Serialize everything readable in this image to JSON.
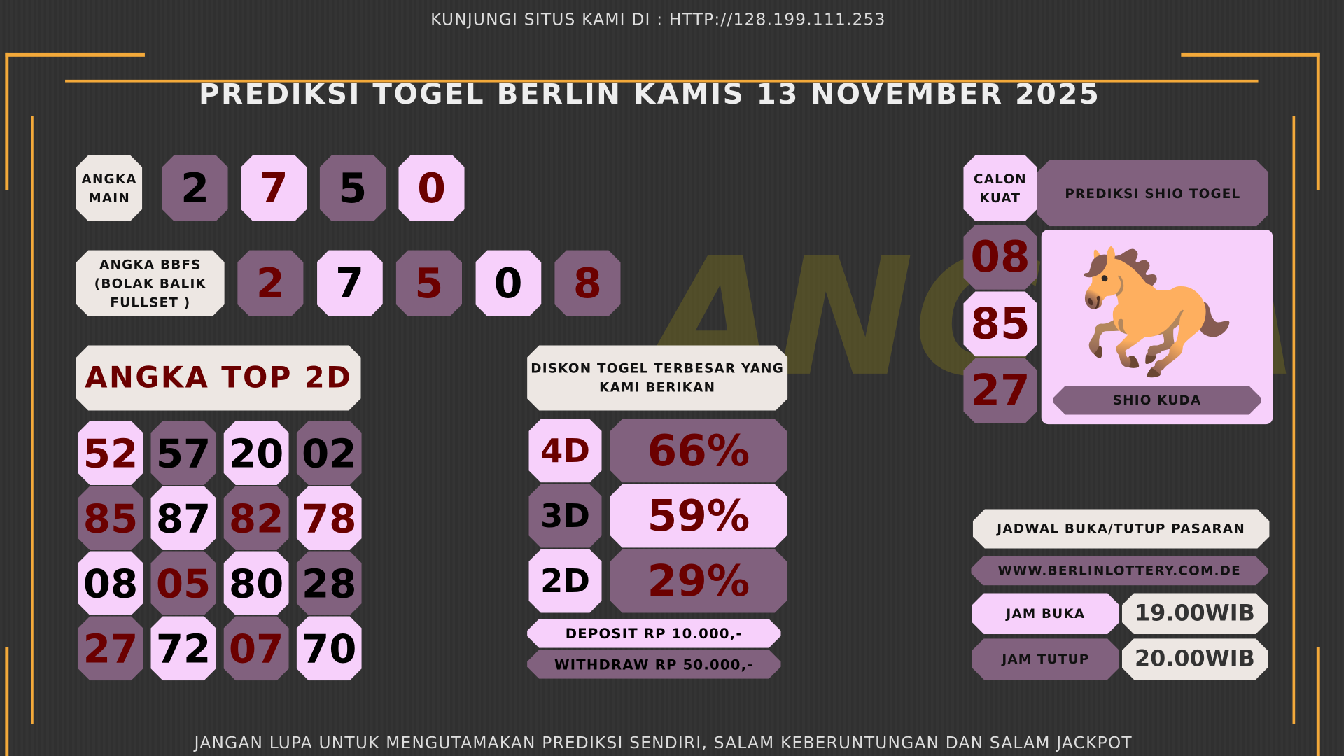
{
  "header": {
    "site": "KUNJUNGI SITUS KAMI DI : HTTP://128.199.111.253",
    "title": "PREDIKSI TOGEL BERLIN KAMIS 13 NOVEMBER 2025"
  },
  "footer": "JANGAN LUPA UNTUK MENGUTAMAKAN PREDIKSI SENDIRI, SALAM KEBERUNTUNGAN DAN SALAM JACKPOT",
  "colors": {
    "purple": "#81617e",
    "pink": "#f7d0fb",
    "offwhite": "#ede7e3",
    "darkred": "#6b0000",
    "accent": "#f3a93a"
  },
  "angka_main": {
    "label": "ANGKA MAIN",
    "digits": [
      "2",
      "7",
      "5",
      "0"
    ]
  },
  "bbfs": {
    "label": "ANGKA BBFS (BOLAK BALIK FULLSET )",
    "digits": [
      "2",
      "7",
      "5",
      "0",
      "8"
    ]
  },
  "top2d": {
    "label": "ANGKA TOP 2D",
    "numbers": [
      "52",
      "57",
      "20",
      "02",
      "85",
      "87",
      "82",
      "78",
      "08",
      "05",
      "80",
      "28",
      "27",
      "72",
      "07",
      "70"
    ]
  },
  "diskon": {
    "title": "DISKON TOGEL TERBESAR YANG KAMI BERIKAN",
    "rows": [
      {
        "type": "4D",
        "value": "66%"
      },
      {
        "type": "3D",
        "value": "59%"
      },
      {
        "type": "2D",
        "value": "29%"
      }
    ],
    "deposit": "DEPOSIT RP 10.000,-",
    "withdraw": "WITHDRAW RP 50.000,-"
  },
  "calon": {
    "label": "CALON KUAT",
    "numbers": [
      "08",
      "85",
      "27"
    ]
  },
  "shio": {
    "title": "PREDIKSI SHIO TOGEL",
    "name": "SHIO KUDA",
    "icon": "horse-icon"
  },
  "jadwal": {
    "title": "JADWAL BUKA/TUTUP PASARAN",
    "website": "WWW.BERLINLOTTERY.COM.DE",
    "buka_label": "JAM BUKA",
    "buka": "19.00WIB",
    "tutup_label": "JAM TUTUP",
    "tutup": "20.00WIB"
  }
}
